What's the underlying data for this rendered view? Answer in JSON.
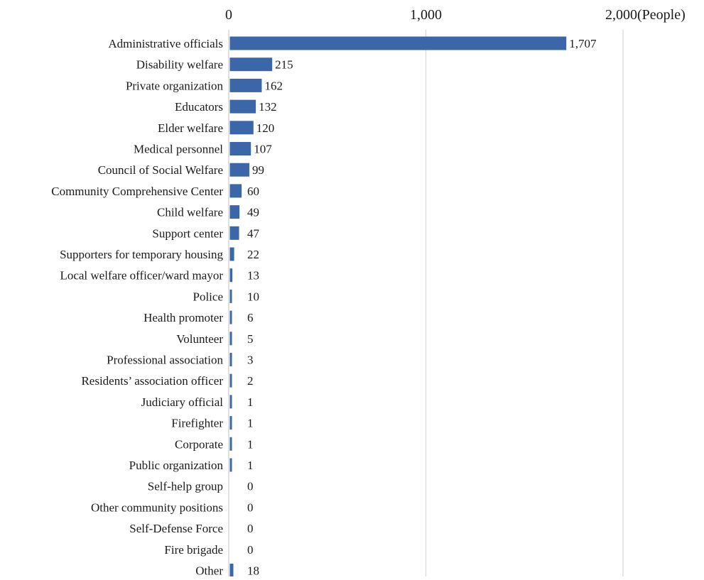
{
  "chart_data": {
    "type": "bar",
    "orientation": "horizontal",
    "axis_position": "top",
    "xlim": [
      0,
      2000
    ],
    "x_ticks": [
      0,
      1000,
      2000
    ],
    "x_tick_labels": [
      "0",
      "1,000",
      "2,000"
    ],
    "x_unit_label": "(People)",
    "grid": true,
    "colors": {
      "bar": "#3b66a8",
      "grid": "#d9d9d9"
    },
    "categories": [
      "Administrative officials",
      "Disability welfare",
      "Private organization",
      "Educators",
      "Elder welfare",
      "Medical personnel",
      "Council of Social Welfare",
      "Community Comprehensive Center",
      "Child welfare",
      "Support center",
      "Supporters for temporary housing",
      "Local welfare officer/ward mayor",
      "Police",
      "Health promoter",
      "Volunteer",
      "Professional association",
      "Residents’ association officer",
      "Judiciary official",
      "Firefighter",
      "Corporate",
      "Public organization",
      "Self-help group",
      "Other community positions",
      "Self-Defense Force",
      "Fire brigade",
      "Other"
    ],
    "values": [
      1707,
      215,
      162,
      132,
      120,
      107,
      99,
      60,
      49,
      47,
      22,
      13,
      10,
      6,
      5,
      3,
      2,
      1,
      1,
      1,
      1,
      0,
      0,
      0,
      0,
      18
    ],
    "value_labels": [
      "1,707",
      "215",
      "162",
      "132",
      "120",
      "107",
      "99",
      "60",
      "49",
      "47",
      "22",
      "13",
      "10",
      "6",
      "5",
      "3",
      "2",
      "1",
      "1",
      "1",
      "1",
      "0",
      "0",
      "0",
      "0",
      "18"
    ]
  }
}
